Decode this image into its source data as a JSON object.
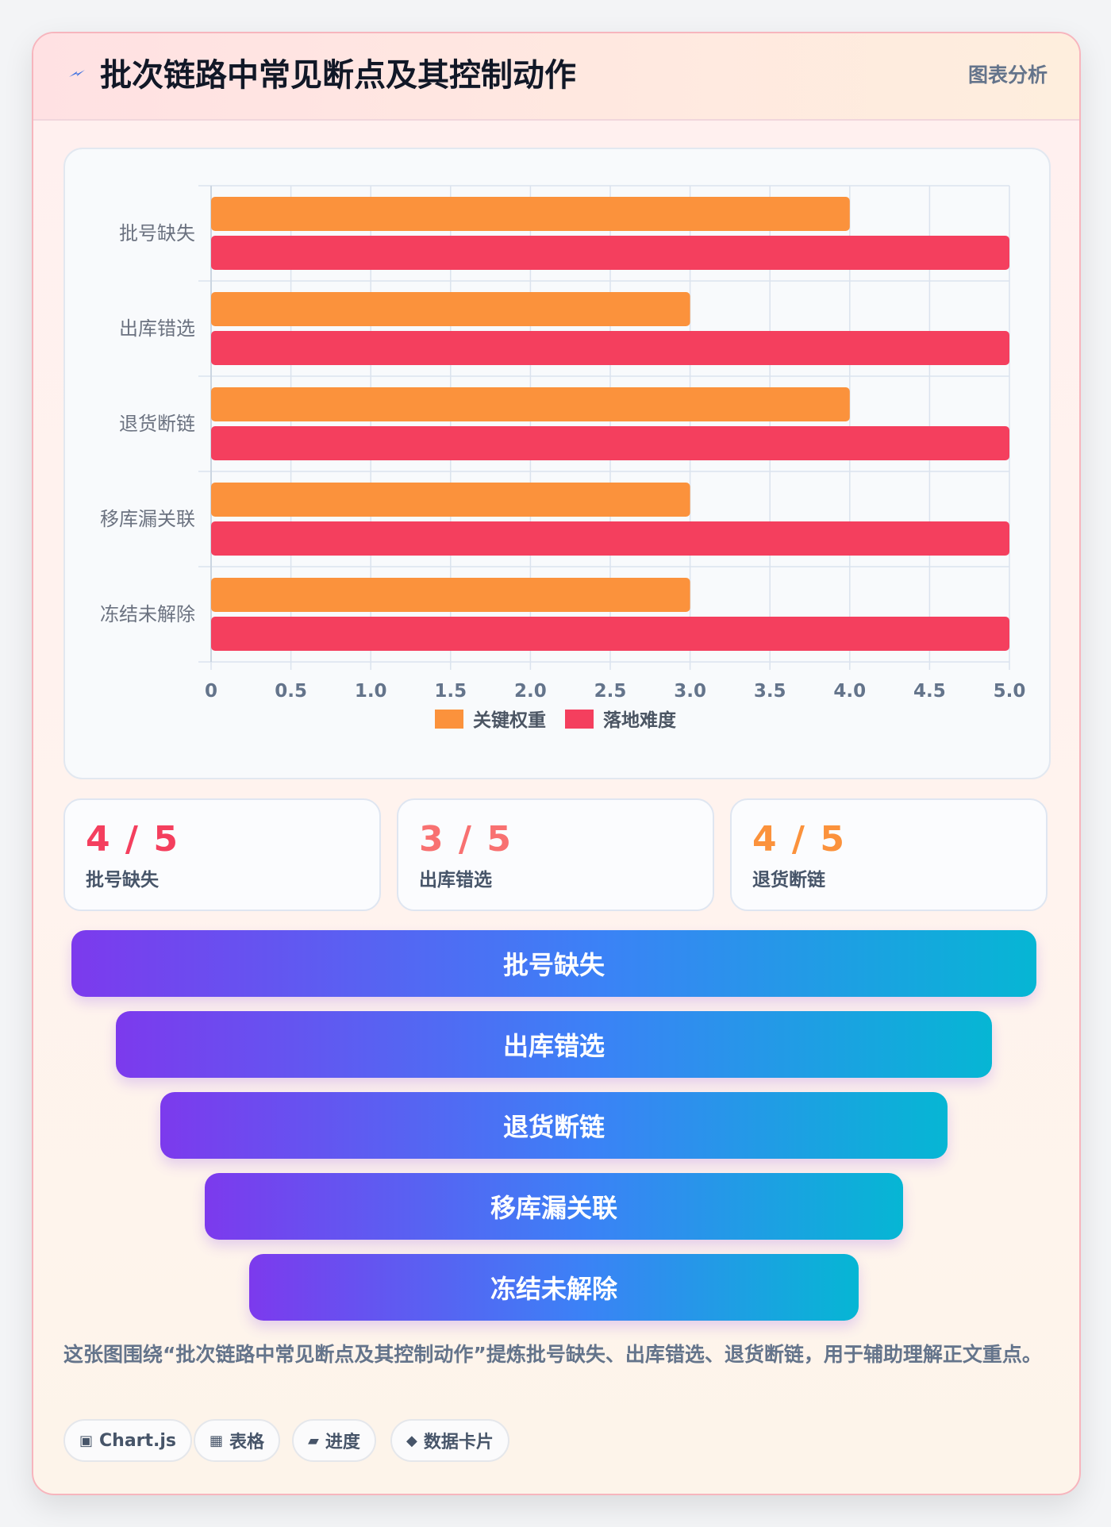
{
  "header": {
    "title": "批次链路中常见断点及其控制动作",
    "badge": "图表分析"
  },
  "chart_data": {
    "type": "bar",
    "orientation": "horizontal",
    "categories": [
      "批号缺失",
      "出库错选",
      "退货断链",
      "移库漏关联",
      "冻结未解除"
    ],
    "series": [
      {
        "name": "关键权重",
        "values": [
          4,
          3,
          4,
          3,
          3
        ],
        "color": "#fb923c"
      },
      {
        "name": "落地难度",
        "values": [
          5,
          5,
          5,
          5,
          5
        ],
        "color": "#f43f5e"
      }
    ],
    "xlim": [
      0,
      5
    ],
    "xticks": [
      "0",
      "0.5",
      "1.0",
      "1.5",
      "2.0",
      "2.5",
      "3.0",
      "3.5",
      "4.0",
      "4.5",
      "5.0"
    ],
    "grid": true,
    "legend": "bottom"
  },
  "stats": [
    {
      "value": "4 / 5",
      "label": "批号缺失",
      "color": "#f43f5e"
    },
    {
      "value": "3 / 5",
      "label": "出库错选",
      "color": "#f87171"
    },
    {
      "value": "4 / 5",
      "label": "退货断链",
      "color": "#fb923c"
    }
  ],
  "funnel": [
    "批号缺失",
    "出库错选",
    "退货断链",
    "移库漏关联",
    "冻结未解除"
  ],
  "note": "这张图围绕“批次链路中常见断点及其控制动作”提炼批号缺失、出库错选、退货断链，用于辅助理解正文重点。",
  "tags": [
    {
      "icon": "▣",
      "label": "Chart.js"
    },
    {
      "icon": "▦",
      "label": "表格"
    },
    {
      "icon": "▰",
      "label": "进度"
    },
    {
      "icon": "◆",
      "label": "数据卡片"
    }
  ]
}
